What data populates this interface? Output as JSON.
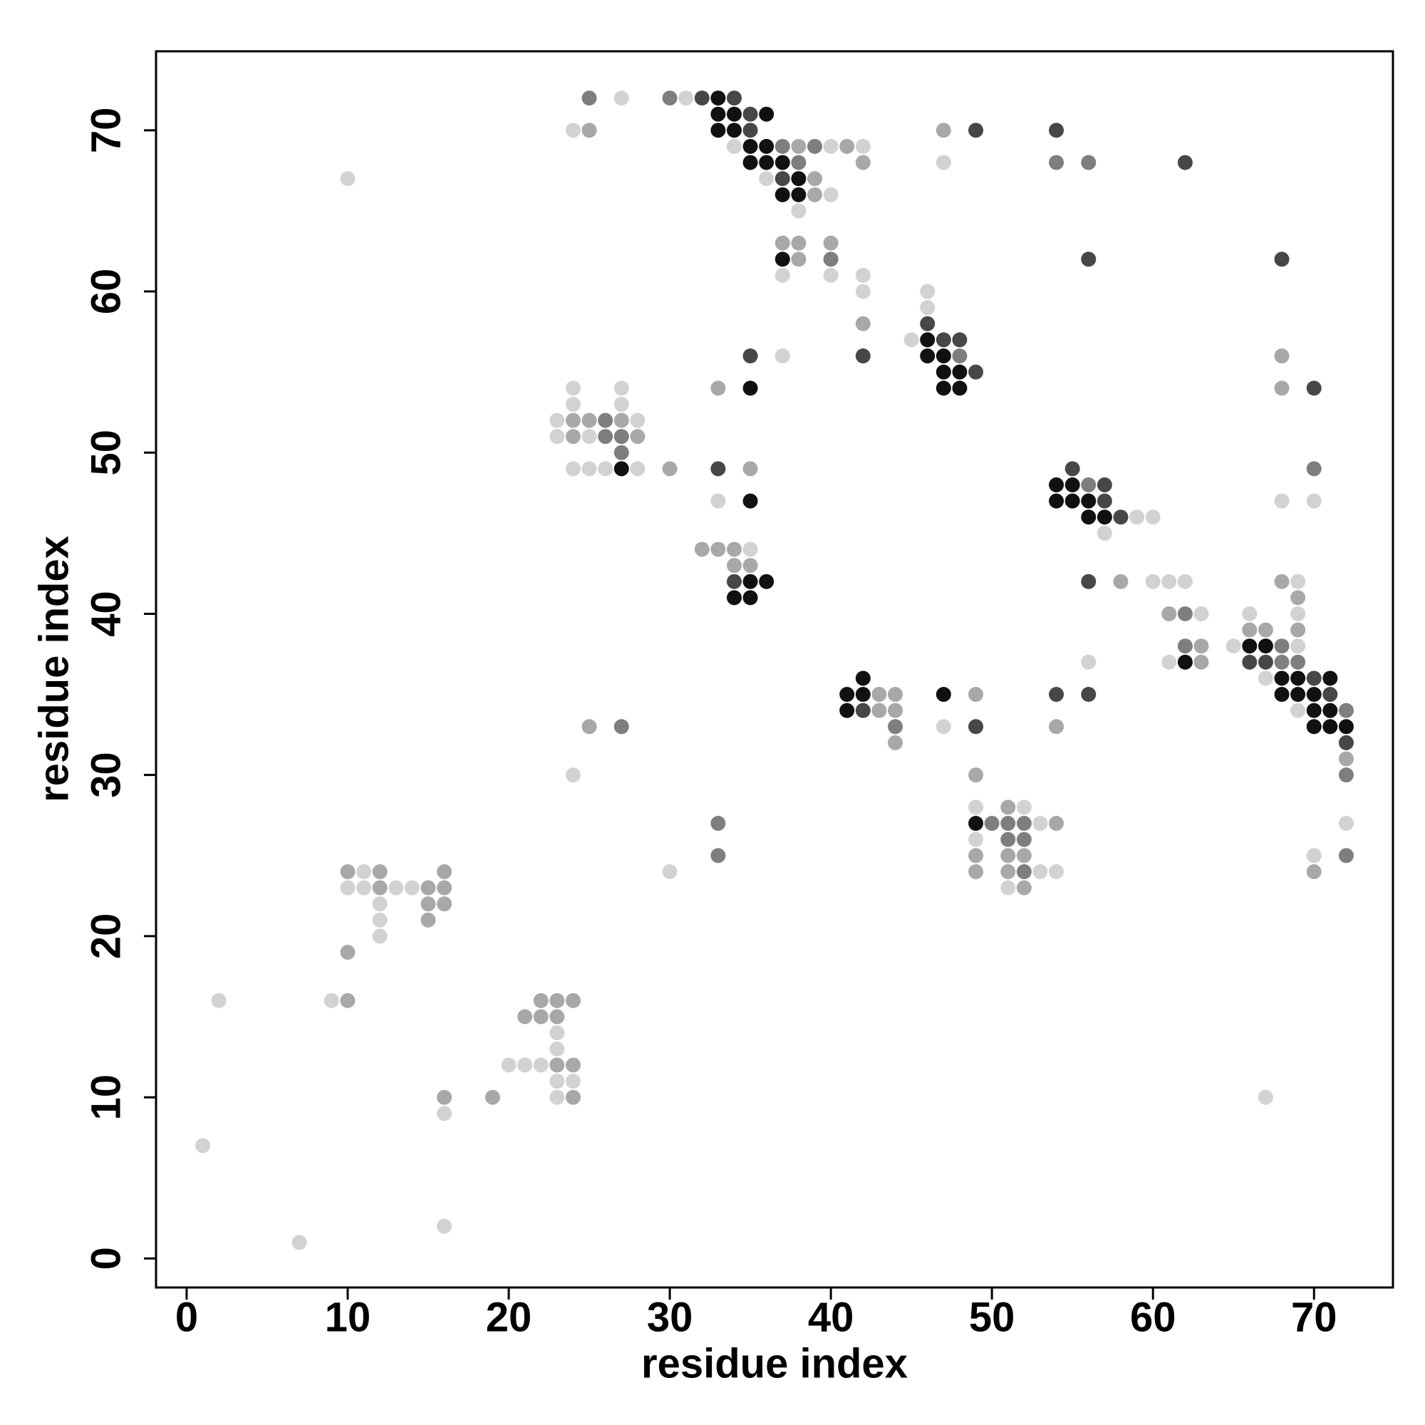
{
  "chart_data": {
    "type": "scatter",
    "xlabel": "residue index",
    "ylabel": "residue index",
    "xlim": [
      -1.9,
      74.9
    ],
    "ylim": [
      -1.8,
      74.9
    ],
    "xticks": [
      0,
      10,
      20,
      30,
      40,
      50,
      60,
      70
    ],
    "yticks": [
      0,
      10,
      20,
      30,
      40,
      50,
      60,
      70
    ],
    "series": [
      {
        "color": "#d2d2d2",
        "x": [
          27,
          31,
          24,
          34,
          40,
          42,
          47,
          10,
          36,
          40,
          38,
          37,
          40,
          42,
          42,
          46,
          46,
          45,
          37,
          24,
          27,
          24,
          27,
          23,
          28,
          23,
          25,
          24,
          25,
          26,
          28,
          33,
          68,
          70,
          59,
          60,
          57,
          35,
          60,
          61,
          62,
          69,
          63,
          66,
          69,
          65,
          69,
          56,
          61,
          67,
          69,
          47,
          24,
          49,
          52,
          53,
          72,
          49,
          70,
          11,
          30,
          53,
          54,
          10,
          11,
          13,
          14,
          51,
          12,
          12,
          12,
          2,
          9,
          23,
          23,
          20,
          21,
          22,
          23,
          24,
          23,
          67,
          16,
          1,
          16,
          7
        ],
        "values": [
          72,
          72,
          70,
          69,
          69,
          69,
          68,
          67,
          67,
          66,
          65,
          61,
          61,
          61,
          60,
          60,
          59,
          57,
          56,
          54,
          54,
          53,
          53,
          52,
          52,
          51,
          51,
          49,
          49,
          49,
          49,
          47,
          47,
          47,
          46,
          46,
          45,
          44,
          42,
          42,
          42,
          42,
          40,
          40,
          40,
          38,
          38,
          37,
          37,
          36,
          34,
          33,
          30,
          28,
          28,
          27,
          27,
          26,
          25,
          24,
          24,
          24,
          24,
          23,
          23,
          23,
          23,
          23,
          22,
          21,
          20,
          16,
          16,
          14,
          13,
          12,
          12,
          12,
          11,
          11,
          10,
          10,
          9,
          7,
          2,
          1
        ]
      },
      {
        "color": "#a8a8a8",
        "x": [
          25,
          47,
          38,
          41,
          42,
          39,
          39,
          37,
          38,
          40,
          38,
          42,
          68,
          33,
          68,
          24,
          25,
          27,
          24,
          28,
          30,
          35,
          32,
          33,
          34,
          34,
          35,
          58,
          68,
          69,
          61,
          66,
          67,
          69,
          63,
          63,
          43,
          44,
          49,
          43,
          44,
          25,
          54,
          44,
          72,
          49,
          51,
          54,
          49,
          51,
          52,
          10,
          12,
          16,
          49,
          51,
          70,
          12,
          15,
          16,
          52,
          15,
          16,
          15,
          10,
          10,
          22,
          23,
          24,
          21,
          22,
          23,
          23,
          24,
          16,
          19,
          24
        ],
        "values": [
          70,
          70,
          69,
          69,
          68,
          67,
          66,
          63,
          63,
          63,
          62,
          58,
          56,
          54,
          54,
          52,
          52,
          52,
          51,
          51,
          49,
          49,
          44,
          44,
          44,
          43,
          43,
          42,
          42,
          41,
          40,
          39,
          39,
          39,
          38,
          37,
          35,
          35,
          35,
          34,
          34,
          33,
          33,
          32,
          31,
          30,
          28,
          27,
          25,
          25,
          25,
          24,
          24,
          24,
          24,
          24,
          24,
          23,
          23,
          23,
          23,
          22,
          22,
          21,
          19,
          16,
          16,
          16,
          16,
          15,
          15,
          15,
          12,
          12,
          10,
          10,
          10
        ]
      },
      {
        "color": "#7e7e7e",
        "x": [
          25,
          30,
          37,
          39,
          38,
          54,
          56,
          40,
          48,
          26,
          26,
          27,
          27,
          70,
          56,
          62,
          62,
          68,
          68,
          69,
          72,
          27,
          44,
          72,
          33,
          50,
          51,
          52,
          51,
          52,
          33,
          72,
          52
        ],
        "values": [
          72,
          72,
          69,
          69,
          68,
          68,
          68,
          62,
          56,
          52,
          51,
          51,
          50,
          49,
          48,
          40,
          38,
          38,
          37,
          37,
          34,
          33,
          33,
          30,
          27,
          27,
          27,
          27,
          26,
          26,
          25,
          25,
          24
        ]
      },
      {
        "color": "#474747",
        "x": [
          32,
          34,
          35,
          35,
          49,
          54,
          62,
          37,
          56,
          68,
          46,
          47,
          48,
          35,
          42,
          49,
          70,
          33,
          55,
          57,
          57,
          58,
          34,
          56,
          66,
          67,
          70,
          54,
          56,
          71,
          42,
          49,
          72
        ],
        "values": [
          72,
          72,
          71,
          70,
          70,
          70,
          68,
          67,
          62,
          62,
          58,
          57,
          57,
          56,
          56,
          55,
          54,
          49,
          49,
          48,
          47,
          46,
          42,
          42,
          37,
          37,
          36,
          35,
          35,
          35,
          34,
          33,
          32
        ]
      },
      {
        "color": "#111111",
        "x": [
          33,
          33,
          34,
          36,
          33,
          34,
          35,
          36,
          35,
          36,
          37,
          38,
          37,
          38,
          37,
          46,
          46,
          47,
          47,
          48,
          35,
          47,
          48,
          27,
          54,
          55,
          35,
          54,
          55,
          56,
          56,
          57,
          35,
          36,
          34,
          35,
          66,
          67,
          62,
          42,
          68,
          69,
          71,
          41,
          42,
          47,
          68,
          69,
          70,
          41,
          70,
          71,
          70,
          71,
          72,
          49
        ],
        "values": [
          72,
          71,
          71,
          71,
          70,
          70,
          69,
          69,
          68,
          68,
          68,
          67,
          66,
          66,
          62,
          57,
          56,
          56,
          55,
          55,
          54,
          54,
          54,
          49,
          48,
          48,
          47,
          47,
          47,
          47,
          46,
          46,
          42,
          42,
          41,
          41,
          38,
          38,
          37,
          36,
          36,
          36,
          36,
          35,
          35,
          35,
          35,
          35,
          35,
          34,
          34,
          34,
          33,
          33,
          33,
          27
        ]
      }
    ]
  }
}
